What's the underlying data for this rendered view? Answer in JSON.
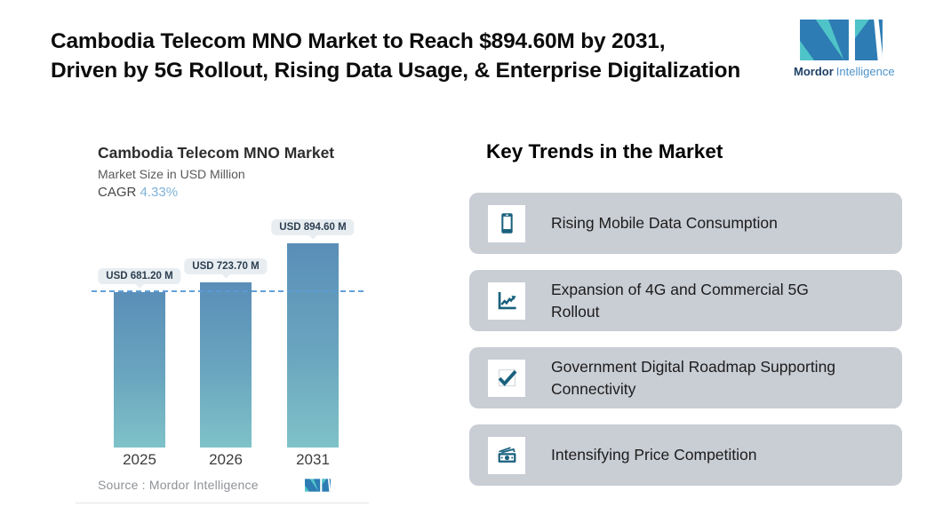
{
  "header": {
    "title_line1": "Cambodia Telecom MNO Market to Reach $894.60M by 2031,",
    "title_line2": "Driven by 5G Rollout, Rising Data Usage, & Enterprise Digitalization"
  },
  "brand": {
    "name_bold": "Mordor",
    "name_light": "Intelligence"
  },
  "chart": {
    "title": "Cambodia Telecom MNO Market",
    "subtitle": "Market Size in USD Million",
    "cagr_label": "CAGR",
    "cagr_value": "4.33%",
    "source": "Source :  Mordor Intelligence"
  },
  "chart_data": {
    "type": "bar",
    "title": "Cambodia Telecom MNO Market",
    "ylabel": "Market Size in USD Million",
    "categories": [
      "2025",
      "2026",
      "2031"
    ],
    "values": [
      681.2,
      723.7,
      894.6
    ],
    "value_labels": [
      "USD 681.20 M",
      "USD 723.70 M",
      "USD 894.60 M"
    ],
    "cagr_percent": 4.33,
    "reference_line_value": 681.2,
    "grid": false,
    "legend": false,
    "bar_color_top": "#5a8eb8",
    "bar_color_bottom": "#7fc2c8",
    "reference_line_color": "#5b9bd5"
  },
  "trends": {
    "heading": "Key Trends in the Market",
    "items": [
      {
        "icon": "smartphone-icon",
        "label": "Rising Mobile Data Consumption"
      },
      {
        "icon": "line-chart-icon",
        "label": "Expansion of 4G and Commercial 5G Rollout"
      },
      {
        "icon": "checkmark-icon",
        "label": "Government Digital Roadmap Supporting Connectivity"
      },
      {
        "icon": "banknote-icon",
        "label": "Intensifying Price Competition"
      }
    ]
  },
  "colors": {
    "accent_teal": "#4fc4c8",
    "accent_blue": "#2e7cb4",
    "icon_dark_teal": "#19617e",
    "card_bg": "#c9cdd4",
    "cagr_value_color": "#7fb3d9",
    "value_bubble_bg": "#e8edf1"
  }
}
